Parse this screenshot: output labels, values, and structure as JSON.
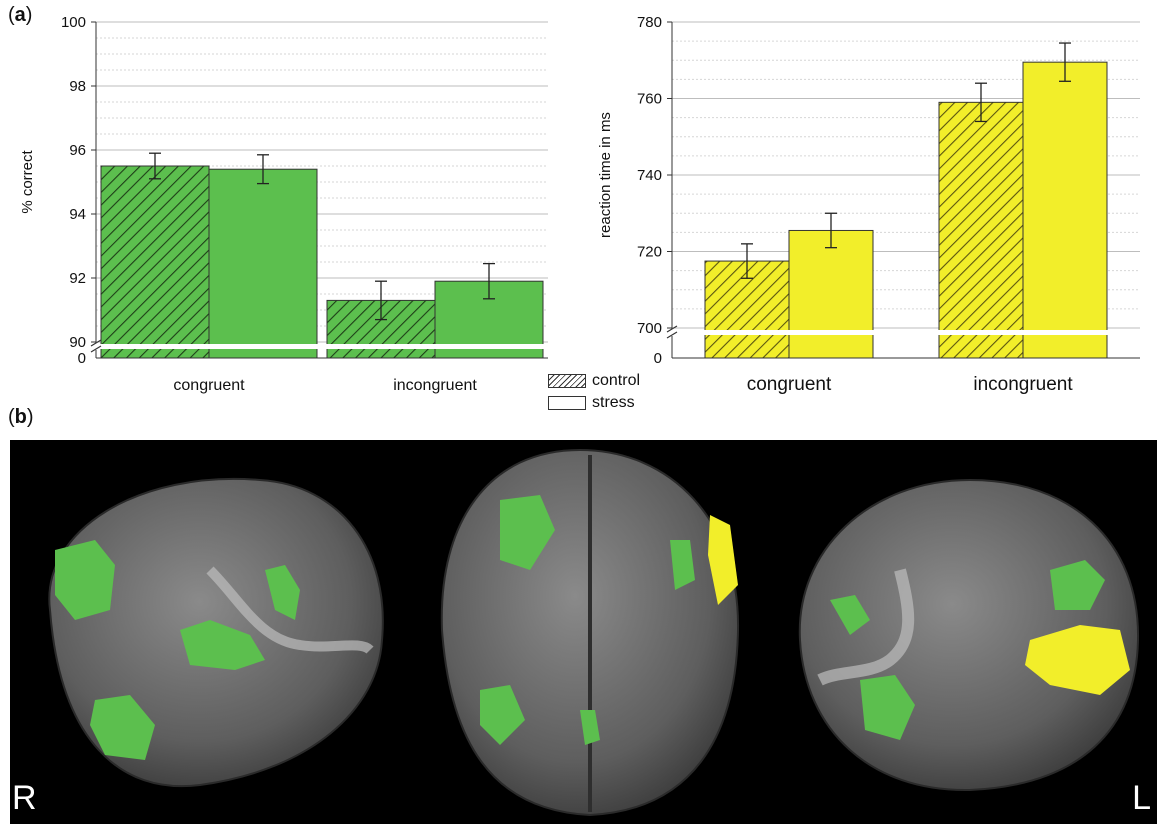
{
  "panel_a_label": "a",
  "panel_b_label": "b",
  "legend": [
    {
      "label": "control",
      "pattern": "hatched"
    },
    {
      "label": "stress",
      "pattern": "solid"
    }
  ],
  "brain": {
    "left_letter": "R",
    "right_letter": "L",
    "background": "#000000",
    "cortex_color": "#6b6b6b",
    "activation_colors": [
      "#5cbf4e",
      "#f2ee2a"
    ]
  },
  "chart_data": [
    {
      "type": "bar",
      "title": "",
      "xlabel": "",
      "ylabel": "% correct",
      "categories": [
        "congruent",
        "incongruent"
      ],
      "series": [
        {
          "name": "control",
          "values": [
            95.5,
            91.3
          ],
          "errors": [
            0.4,
            0.6
          ],
          "pattern": "hatched"
        },
        {
          "name": "stress",
          "values": [
            95.4,
            91.9
          ],
          "errors": [
            0.45,
            0.55
          ],
          "pattern": "solid"
        }
      ],
      "ylim": [
        90,
        100
      ],
      "yticks": [
        90,
        92,
        94,
        96,
        98,
        100
      ],
      "axis_break": true,
      "break_zero_label": "0",
      "color": "#5cbf4e",
      "grid": true
    },
    {
      "type": "bar",
      "title": "",
      "xlabel": "",
      "ylabel": "reaction time in ms",
      "categories": [
        "congruent",
        "incongruent"
      ],
      "series": [
        {
          "name": "control",
          "values": [
            717.5,
            759
          ],
          "errors": [
            4.5,
            5
          ],
          "pattern": "hatched"
        },
        {
          "name": "stress",
          "values": [
            725.5,
            769.5
          ],
          "errors": [
            4.5,
            5
          ],
          "pattern": "solid"
        }
      ],
      "ylim": [
        700,
        780
      ],
      "yticks": [
        700,
        720,
        740,
        760,
        780
      ],
      "axis_break": true,
      "break_zero_label": "0",
      "color": "#f2ee2a",
      "grid": true
    }
  ]
}
